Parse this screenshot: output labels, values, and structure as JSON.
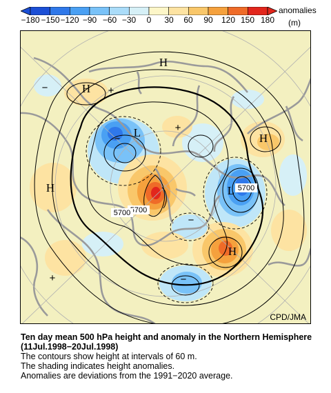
{
  "legend": {
    "title": "anomalies",
    "unit": "(m)",
    "ticks": [
      "−180",
      "−150",
      "−120",
      "−90",
      "−60",
      "−30",
      "0",
      "30",
      "60",
      "90",
      "120",
      "150",
      "180"
    ],
    "colors": [
      "#1b4fd6",
      "#2f78ea",
      "#4aa0f3",
      "#79c2f8",
      "#aadcf9",
      "#d6f0f7",
      "#fdf6c8",
      "#fde3a2",
      "#f9c76a",
      "#f5a13d",
      "#ef6b28",
      "#e2261c"
    ]
  },
  "map": {
    "credit": "CPD/JMA",
    "contour_labels": [
      "5700",
      "5700",
      "5700"
    ],
    "pressure_centers": [
      "H",
      "H",
      "H",
      "H",
      "H",
      "L",
      "L"
    ],
    "signs": [
      "+",
      "+",
      "+",
      "−",
      "−",
      "−",
      "−"
    ],
    "colors": {
      "land": "#9a9a9a",
      "background": "#f3f0c0",
      "contour": "#000000"
    }
  },
  "caption": {
    "title": "Ten day mean 500 hPa height and anomaly in the Northern Hemisphere (11Jul.1998−20Jul.1998)",
    "lines": [
      "The contours show height at intervals of 60 m.",
      "The shading indicates height anomalies.",
      "Anomalies are deviations from the 1991−2020 average."
    ]
  }
}
